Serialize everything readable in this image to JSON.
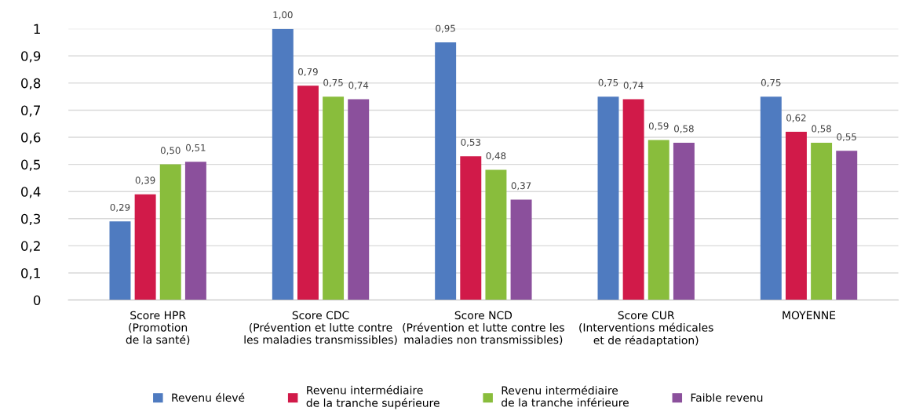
{
  "chart_data": {
    "type": "bar",
    "categories": [
      "Score HPR\n(Promotion\nde la santé)",
      "Score CDC\n(Prévention et lutte contre\nles maladies transmissibles)",
      "Score NCD\n(Prévention et lutte contre les\nmaladies non transmissibles)",
      "Score CUR\n(Interventions médicales\net de réadaptation)",
      "MOYENNE"
    ],
    "series": [
      {
        "name": "Revenu élevé",
        "color": "#4f7bc0",
        "values": [
          0.29,
          1.0,
          0.95,
          0.75,
          0.75
        ],
        "value_labels": [
          "0,29",
          "1,00",
          "0,95",
          "0,75",
          "0,75"
        ]
      },
      {
        "name": "Revenu intermédiaire\nde la tranche supérieure",
        "color": "#d11a49",
        "values": [
          0.39,
          0.79,
          0.53,
          0.74,
          0.62
        ],
        "value_labels": [
          "0,39",
          "0,79",
          "0,53",
          "0,74",
          "0,62"
        ]
      },
      {
        "name": "Revenu intermédiaire\nde la tranche inférieure",
        "color": "#89bd3c",
        "values": [
          0.5,
          0.75,
          0.48,
          0.59,
          0.58
        ],
        "value_labels": [
          "0,50",
          "0,75",
          "0,48",
          "0,59",
          "0,58"
        ]
      },
      {
        "name": "Faible revenu",
        "color": "#8b509c",
        "values": [
          0.51,
          0.74,
          0.37,
          0.58,
          0.55
        ],
        "value_labels": [
          "0,51",
          "0,74",
          "0,37",
          "0,58",
          "0,55"
        ]
      }
    ],
    "ylim": [
      0,
      1
    ],
    "yticks": [
      0,
      {
        "value": 0.1,
        "label": "0,1"
      },
      {
        "value": 0.2,
        "label": "0,2"
      },
      {
        "value": 0.3,
        "label": "0,3"
      },
      {
        "value": 0.4,
        "label": "0,4"
      },
      {
        "value": 0.5,
        "label": "0,5"
      },
      {
        "value": 0.6,
        "label": "0,6"
      },
      {
        "value": 0.7,
        "label": "0,7"
      },
      {
        "value": 0.8,
        "label": "0,8"
      },
      {
        "value": 0.9,
        "label": "0,9"
      },
      1
    ],
    "grid": "y",
    "legend": "bottom"
  }
}
